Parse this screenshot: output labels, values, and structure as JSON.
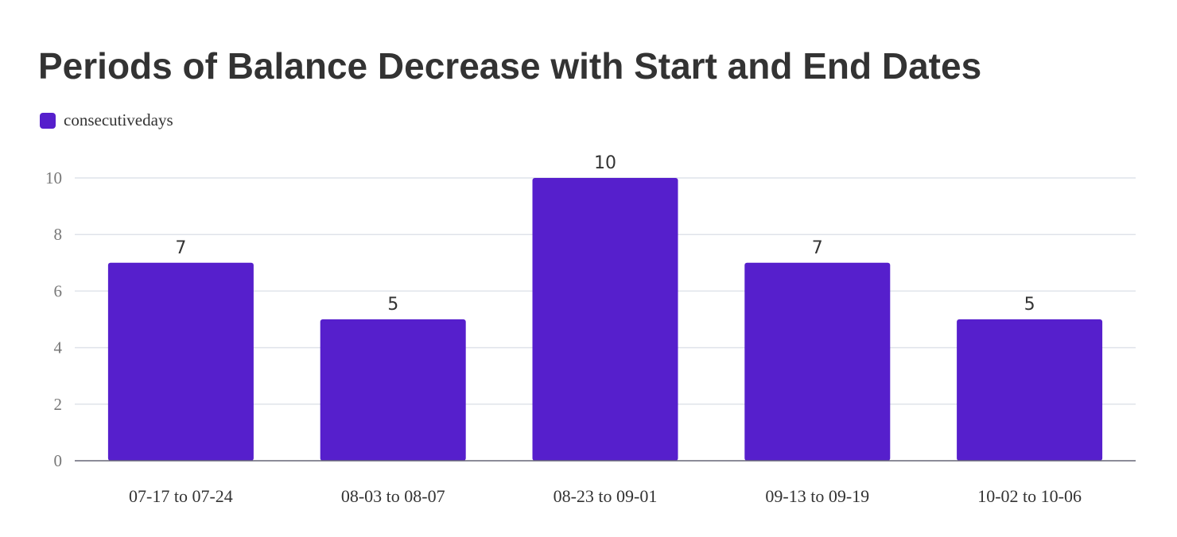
{
  "chart_data": {
    "type": "bar",
    "title": "Periods of Balance Decrease with Start and End Dates",
    "categories": [
      "07-17 to 07-24",
      "08-03 to 08-07",
      "08-23 to 09-01",
      "09-13 to 09-19",
      "10-02 to 10-06"
    ],
    "series": [
      {
        "name": "consecutivedays",
        "values": [
          7,
          5,
          10,
          7,
          5
        ],
        "color": "#561fcc"
      }
    ],
    "data_labels": [
      "7",
      "5",
      "10",
      "7",
      "5"
    ],
    "ylim": [
      0,
      10
    ],
    "yticks": [
      0,
      2,
      4,
      6,
      8,
      10
    ],
    "ytick_labels": [
      "0",
      "2",
      "4",
      "6",
      "8",
      "10"
    ],
    "grid": true,
    "legend_position": "top-left",
    "colors": {
      "grid": "#dfe3ea",
      "axis": "#666677",
      "title": "#333333",
      "tick": "#777777"
    }
  }
}
